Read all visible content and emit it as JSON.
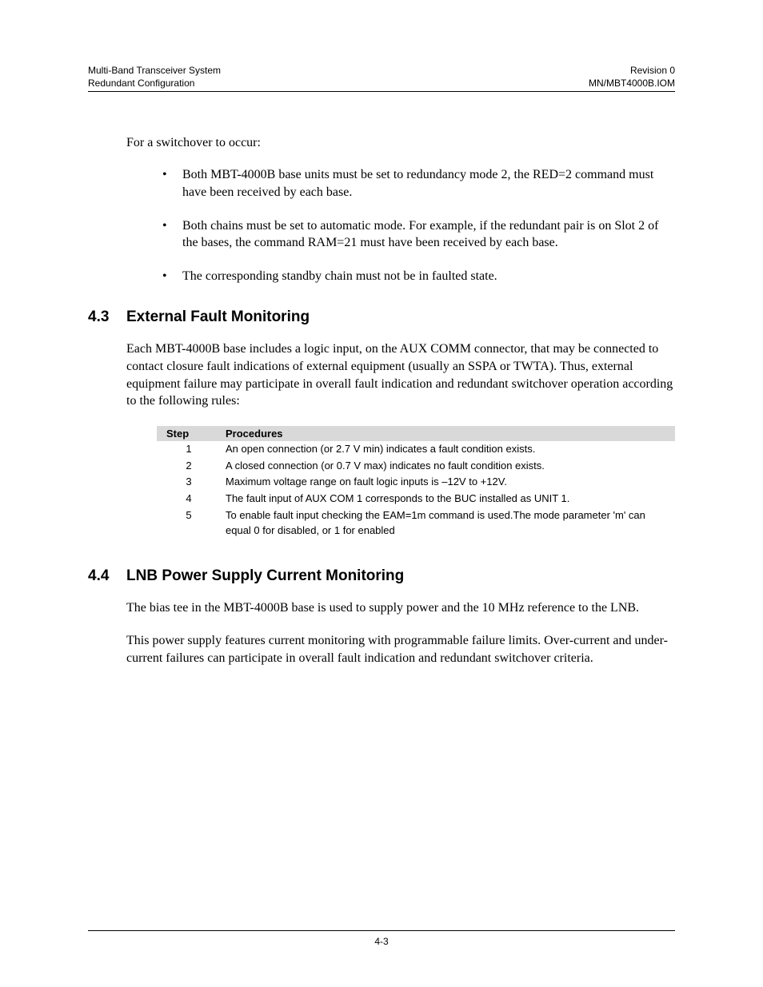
{
  "header": {
    "left_line1": "Multi-Band Transceiver System",
    "left_line2": "Redundant Configuration",
    "right_line1": "Revision 0",
    "right_line2": "MN/MBT4000B.IOM"
  },
  "intro": "For a switchover to occur:",
  "bullets": [
    "Both MBT-4000B base units must be set to redundancy mode 2, the RED=2 command must have been received by each base.",
    "Both chains must be set to automatic mode.  For example, if the redundant pair is on Slot 2 of the bases, the command RAM=21 must have been received by each base.",
    "The corresponding standby chain must not be in faulted state."
  ],
  "section43": {
    "num": "4.3",
    "title": "External Fault Monitoring",
    "para": "Each MBT-4000B base includes a logic input, on the AUX COMM connector, that may be connected to contact closure fault indications of external equipment (usually an SSPA or TWTA). Thus, external equipment failure may participate in overall fault indication and redundant switchover operation according to the following rules:"
  },
  "table": {
    "col1": "Step",
    "col2": "Procedures",
    "rows": [
      {
        "step": "1",
        "proc": "An open connection (or 2.7 V min) indicates a fault condition exists."
      },
      {
        "step": "2",
        "proc": "A closed connection (or 0.7 V max) indicates no fault condition exists."
      },
      {
        "step": "3",
        "proc": "Maximum voltage range on fault logic inputs is –12V to +12V."
      },
      {
        "step": "4",
        "proc": "The fault input of AUX COM 1 corresponds to the BUC installed as UNIT 1."
      },
      {
        "step": "5",
        "proc": "To enable fault input checking the EAM=1m command is used.The mode parameter 'm' can equal 0 for disabled, or 1 for enabled"
      }
    ]
  },
  "section44": {
    "num": "4.4",
    "title": "LNB Power Supply Current Monitoring",
    "para1": "The bias tee in the MBT-4000B base is used to supply power and the 10 MHz reference to the LNB.",
    "para2": "This power supply features current monitoring with programmable failure limits.  Over-current and under-current failures can participate in overall fault indication and redundant switchover criteria."
  },
  "footer": {
    "page": "4-3"
  }
}
